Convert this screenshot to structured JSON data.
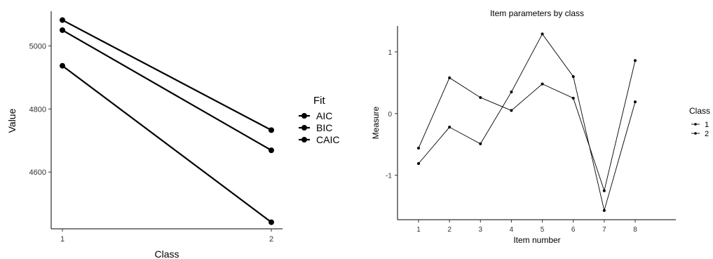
{
  "chart_data": [
    {
      "type": "line",
      "title": "",
      "xlabel": "Class",
      "ylabel": "Value",
      "x": [
        1,
        2
      ],
      "x_tick_labels": [
        "1",
        "2"
      ],
      "y_ticks": [
        4600,
        4800,
        5000
      ],
      "y_tick_labels": [
        "4600",
        "4800",
        "5000"
      ],
      "ylim": [
        4420,
        5110
      ],
      "legend_title": "Fit",
      "legend_position": "right",
      "grid": false,
      "series": [
        {
          "name": "AIC",
          "values": [
            4937,
            4441
          ]
        },
        {
          "name": "BIC",
          "values": [
            5082,
            4733
          ]
        },
        {
          "name": "CAIC",
          "values": [
            5050,
            4669
          ]
        }
      ]
    },
    {
      "type": "line",
      "title": "Item parameters by class",
      "xlabel": "Item number",
      "ylabel": "Measure",
      "x": [
        1,
        2,
        3,
        4,
        5,
        6,
        7,
        8
      ],
      "x_tick_labels": [
        "1",
        "2",
        "3",
        "4",
        "5",
        "6",
        "7",
        "8"
      ],
      "y_ticks": [
        -1,
        0,
        1
      ],
      "y_tick_labels": [
        "-1",
        "0",
        "1"
      ],
      "ylim": [
        -1.72,
        1.42
      ],
      "legend_title": "Class",
      "legend_position": "right",
      "grid": false,
      "series": [
        {
          "name": "1",
          "values": [
            -0.56,
            0.58,
            0.26,
            0.05,
            0.48,
            0.25,
            -1.25,
            0.86
          ]
        },
        {
          "name": "2",
          "values": [
            -0.81,
            -0.22,
            -0.49,
            0.35,
            1.29,
            0.6,
            -1.57,
            0.19
          ]
        }
      ]
    }
  ],
  "colors": {
    "line": "#000000",
    "axis": "#000000",
    "tick_text": "#333333"
  }
}
